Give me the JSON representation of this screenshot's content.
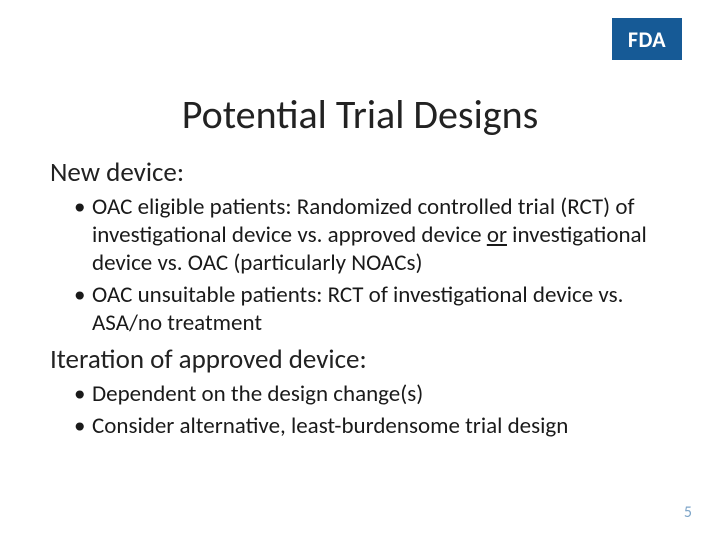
{
  "logo": {
    "text": "FDA",
    "bg_color": "#165a96",
    "text_color": "#ffffff"
  },
  "title": "Potential Trial Designs",
  "sections": [
    {
      "heading": "New device:",
      "bullets": [
        {
          "pre": "OAC eligible patients: Randomized controlled trial (RCT) of investigational device vs. approved device ",
          "u": "or",
          "post": " investigational device vs. OAC (particularly NOACs)"
        },
        {
          "pre": "OAC unsuitable patients: RCT of investigational device vs. ASA/no treatment",
          "u": "",
          "post": ""
        }
      ]
    },
    {
      "heading": "Iteration of approved device:",
      "bullets": [
        {
          "pre": "Dependent on the design change(s)",
          "u": "",
          "post": ""
        },
        {
          "pre": "Consider alternative, least-burdensome trial design",
          "u": "",
          "post": ""
        }
      ]
    }
  ],
  "page_number": "5",
  "colors": {
    "page_number": "#7fa6c9",
    "text": "#1a1a1a",
    "background": "#ffffff"
  },
  "typography": {
    "title_fontsize": 40,
    "subhead_fontsize": 27,
    "bullet_fontsize": 23
  }
}
